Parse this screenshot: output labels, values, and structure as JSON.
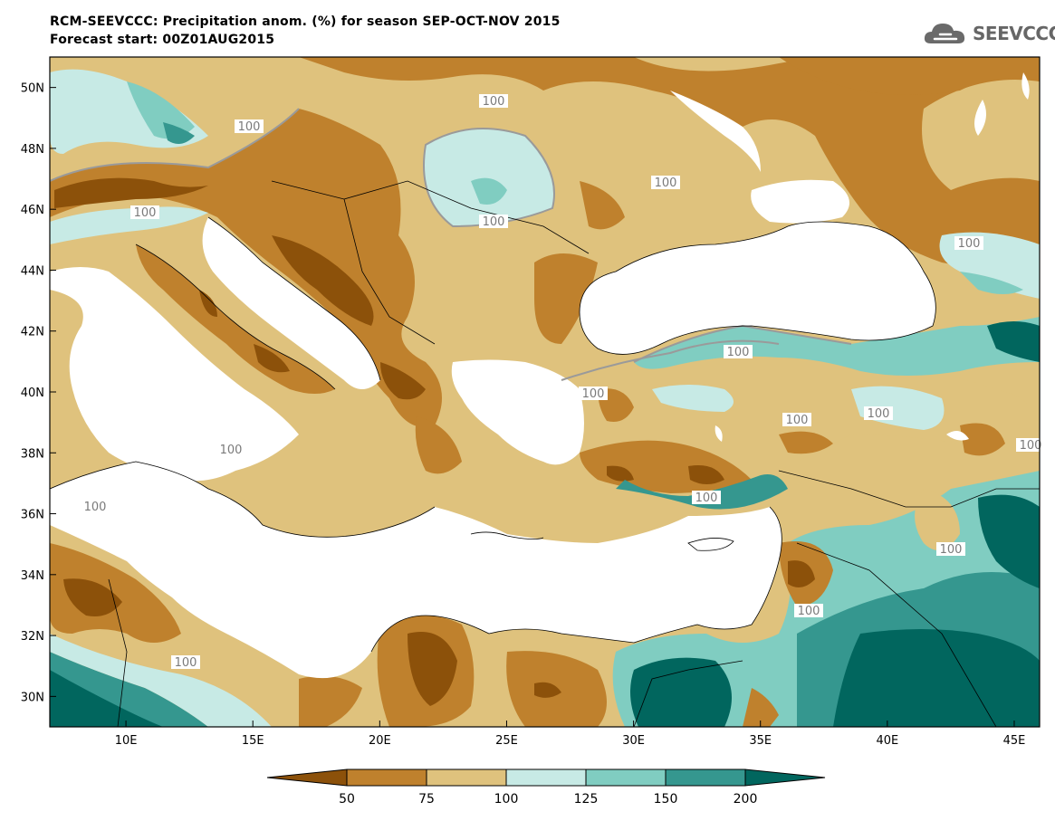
{
  "title_line1": "RCM-SEEVCCC: Precipitation anom. (%) for season SEP-OCT-NOV 2015",
  "title_line2": "Forecast start: 00Z01AUG2015",
  "logo_text": "SEEVCCC",
  "map": {
    "lon_range": [
      7,
      46
    ],
    "lat_range": [
      29,
      51
    ],
    "lat_ticks": [
      "50N",
      "48N",
      "46N",
      "44N",
      "42N",
      "40N",
      "38N",
      "36N",
      "34N",
      "32N",
      "30N"
    ],
    "lon_ticks": [
      "10E",
      "15E",
      "20E",
      "25E",
      "30E",
      "35E",
      "40E",
      "45E"
    ],
    "contour_labels": [
      "100",
      "100",
      "100",
      "100",
      "100",
      "100",
      "100",
      "100",
      "100",
      "100",
      "100",
      "100",
      "100",
      "100",
      "100",
      "100",
      "100"
    ]
  },
  "colorbar": {
    "labels": [
      "50",
      "75",
      "100",
      "125",
      "150",
      "200"
    ],
    "colors": [
      "#8c510a",
      "#bf812d",
      "#dfc27d",
      "#c7eae5",
      "#80cdc1",
      "#35978f",
      "#01665e"
    ]
  }
}
